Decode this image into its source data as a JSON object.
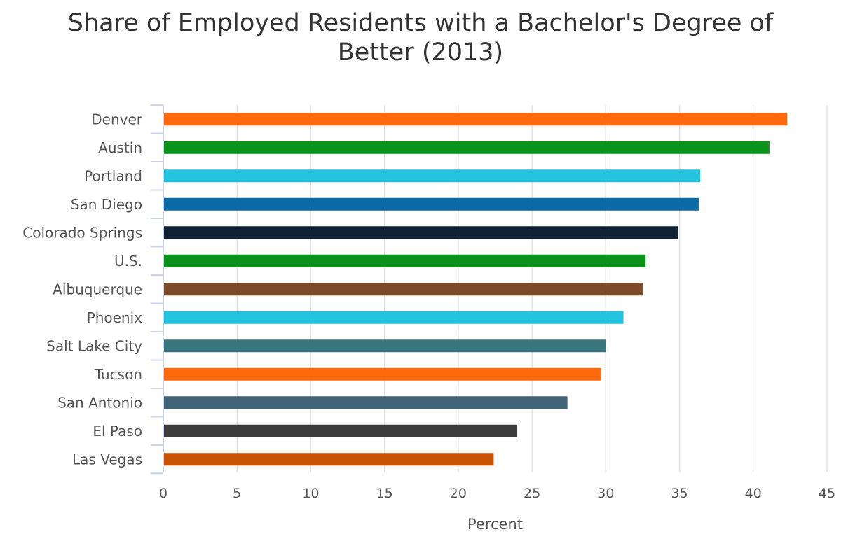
{
  "chart_data": {
    "type": "bar",
    "orientation": "horizontal",
    "title_lines": [
      "Share of Employed Residents with a Bachelor's Degree of",
      "Better (2013)"
    ],
    "title": "Share of Employed Residents with a Bachelor's Degree of Better (2013)",
    "xlabel": "Percent",
    "ylabel": "",
    "xlim": [
      0,
      45
    ],
    "ticks": [
      "0",
      "5",
      "10",
      "15",
      "20",
      "25",
      "30",
      "35",
      "40",
      "45"
    ],
    "grid": true,
    "legend": "none",
    "categories": [
      "Denver",
      "Austin",
      "Portland",
      "San Diego",
      "Colorado Springs",
      "U.S.",
      "Albuquerque",
      "Phoenix",
      "Salt Lake City",
      "Tucson",
      "San Antonio",
      "El Paso",
      "Las Vegas"
    ],
    "values": [
      42.3,
      41.1,
      36.4,
      36.3,
      34.9,
      32.7,
      32.5,
      31.2,
      30.0,
      29.7,
      27.4,
      24.0,
      22.4
    ],
    "colors": [
      "#ff6a0f",
      "#0b931b",
      "#24c4e0",
      "#0a6aa6",
      "#0e2233",
      "#0b931b",
      "#7d4b27",
      "#24c4e0",
      "#3a767e",
      "#ff6a0f",
      "#426478",
      "#3c3c3c",
      "#c95302"
    ]
  }
}
